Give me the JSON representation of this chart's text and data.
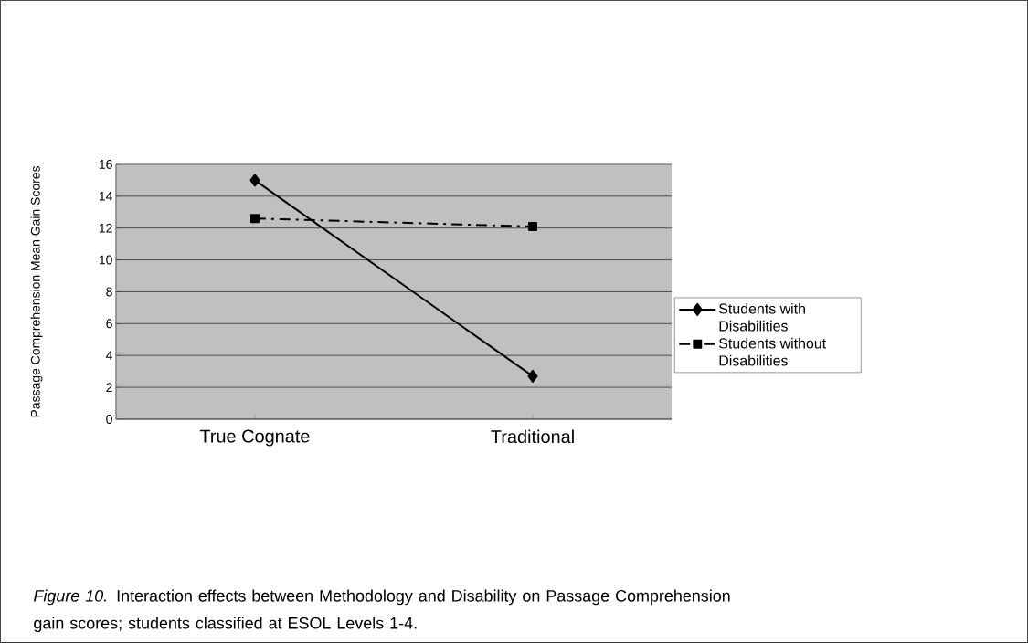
{
  "chart_data": {
    "type": "line",
    "ylabel": "Passage Comprehension Mean Gain Scores",
    "categories": [
      "True Cognate",
      "Traditional"
    ],
    "series": [
      {
        "name": "Students with Disabilities",
        "color": "#000000",
        "values": [
          15,
          2.7
        ],
        "marker": "diamond",
        "line_style": "solid"
      },
      {
        "name": "Students without Disabilities",
        "color": "#000000",
        "values": [
          12.6,
          12.1
        ],
        "marker": "square",
        "line_style": "dashed"
      }
    ],
    "ylim": [
      0,
      16
    ],
    "yticks": [
      0,
      2,
      4,
      6,
      8,
      10,
      12,
      14,
      16
    ],
    "grid": "y",
    "legend": "right",
    "annotations": [
      "*Figure 10.* Interaction effects between Methodology and Disability on Passage Comprehension gain scores; students classified at ESOL Levels 1-4."
    ]
  }
}
